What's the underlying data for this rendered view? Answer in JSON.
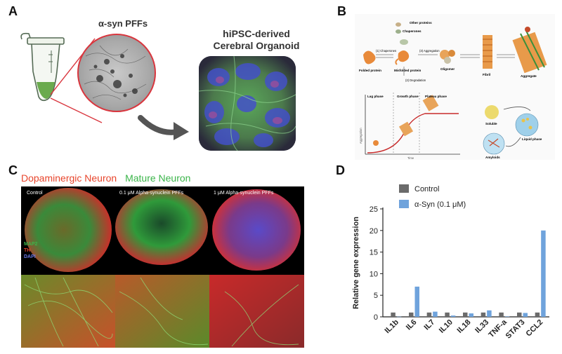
{
  "panels": {
    "a": "A",
    "b": "B",
    "c": "C",
    "d": "D"
  },
  "panel_a": {
    "pff_label": "α-syn PFFs",
    "organoid_label_line1": "hiPSC-derived",
    "organoid_label_line2": "Cerebral Organoid"
  },
  "panel_b": {
    "other_proteins": "Other proteins",
    "chaperones": "Chaperones",
    "folded_protein": "Folded protein",
    "misfolded_protein": "Misfolded protein",
    "step1": "(1) Chaperones",
    "step2": "(2) Degradation",
    "step3": "(3) Aggregation",
    "oligomer": "Oligomer",
    "fibril": "Fibril",
    "aggregate": "Aggregate",
    "lag_phase": "Lag phase",
    "growth_phase": "Growth phase",
    "plateau_phase": "Plateau phase",
    "y_axis": "Aggregation",
    "x_axis": "Time",
    "soluble": "Soluble",
    "liquid_phase": "Liquid phase",
    "amyloids": "Amyloids"
  },
  "panel_c": {
    "title_red": "Dopaminergic Neuron",
    "title_green": "Mature Neuron",
    "cond_1": "Control",
    "cond_2": "0.1 μM Alpha-synuclein PFFs",
    "cond_3": "1 μM Alpha-synuclein PFFs",
    "stain_map2": "MAP2",
    "stain_th": "TH",
    "stain_dapi": "DAPI",
    "colors": {
      "red": "#e8452c",
      "green": "#3bb54a",
      "blue": "#4a5bd6"
    }
  },
  "chart_data": {
    "type": "bar",
    "title": "",
    "xlabel": "",
    "ylabel": "Relative gene expression",
    "ylim": [
      0,
      25
    ],
    "yticks": [
      0,
      5,
      10,
      15,
      20,
      25
    ],
    "categories": [
      "IL1b",
      "IL6",
      "IL7",
      "IL10",
      "IL18",
      "IL33",
      "TNF-a",
      "STAT3",
      "CCL2"
    ],
    "series": [
      {
        "name": "Control",
        "color": "#6b6b6b",
        "values": [
          1,
          1,
          1,
          1,
          1,
          1,
          1,
          1,
          1
        ]
      },
      {
        "name": "α-Syn (0.1 μM)",
        "color": "#6fa3dc",
        "values": [
          0.05,
          7.0,
          1.2,
          0.3,
          0.8,
          1.5,
          0.1,
          0.9,
          20.0
        ]
      }
    ],
    "legend_position": "top"
  }
}
